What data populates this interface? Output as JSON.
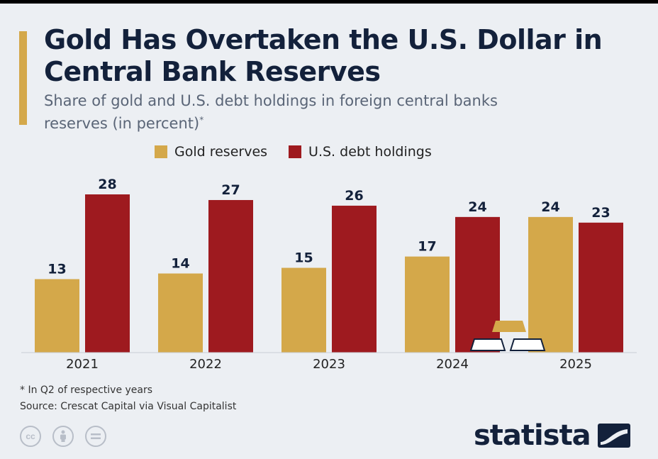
{
  "header": {
    "title": "Gold Has Overtaken the U.S. Dollar in Central Bank Reserves",
    "subtitle": "Share of gold and U.S. debt holdings in foreign central banks reserves (in percent)",
    "subtitle_mark": "*"
  },
  "colors": {
    "gold": "#d4a84a",
    "debt": "#9e1a1f",
    "accent": "#d4a84a",
    "title": "#13213b"
  },
  "chart_data": {
    "type": "bar",
    "title": "Gold Has Overtaken the U.S. Dollar in Central Bank Reserves",
    "subtitle": "Share of gold and U.S. debt holdings in foreign central banks reserves (in percent)",
    "categories": [
      "2021",
      "2022",
      "2023",
      "2024",
      "2025"
    ],
    "series": [
      {
        "name": "Gold reserves",
        "values": [
          13,
          14,
          15,
          17,
          24
        ]
      },
      {
        "name": "U.S. debt holdings",
        "values": [
          28,
          27,
          26,
          24,
          23
        ]
      }
    ],
    "ylim": [
      0,
      28
    ],
    "grid": false,
    "legend": "top",
    "data_labels": true
  },
  "footer": {
    "footnote": "* In Q2 of respective years",
    "source": "Source: Crescat Capital via Visual Capitalist",
    "license_icons": [
      "cc-icon",
      "attribution-icon",
      "no-derivatives-icon"
    ],
    "brand": "statista"
  }
}
